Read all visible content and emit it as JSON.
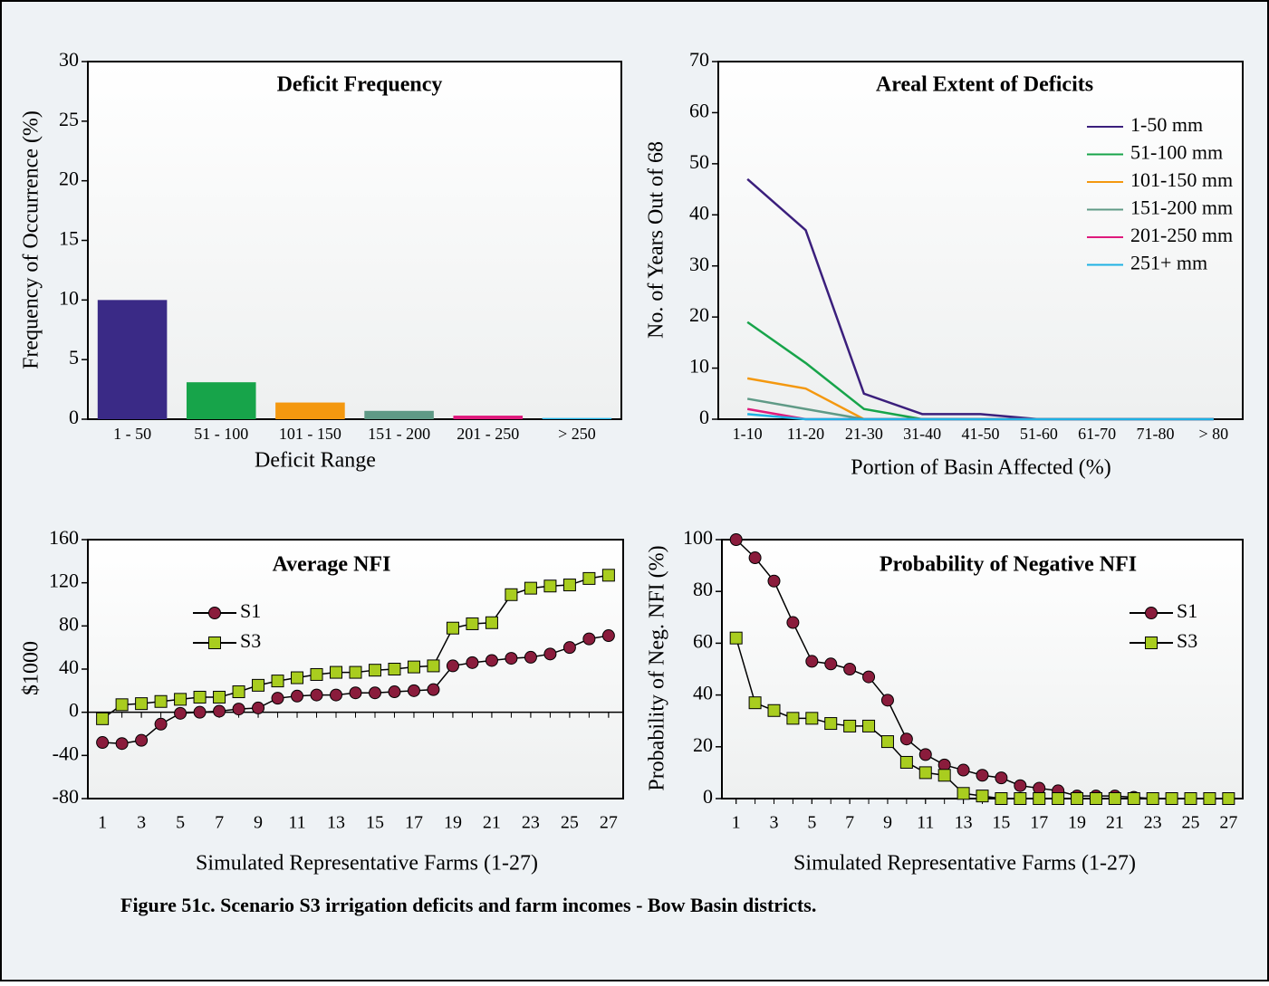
{
  "chart_data": [
    {
      "type": "bar",
      "title": "Deficit Frequency",
      "x_label": "Deficit Range",
      "y_label": "Frequency of Occurrence (%)",
      "categories": [
        "1 - 50",
        "51 - 100",
        "101 - 150",
        "151 - 200",
        "201 - 250",
        "> 250"
      ],
      "values": [
        10,
        3.1,
        1.4,
        0.7,
        0.3,
        0.1
      ],
      "colors": [
        "#3a2a86",
        "#17a44a",
        "#f4980f",
        "#5f9a86",
        "#df1a7c",
        "#1eb1e3"
      ],
      "ylim": [
        0,
        30
      ],
      "yticks": [
        0,
        5,
        10,
        15,
        20,
        25,
        30
      ]
    },
    {
      "type": "line",
      "title": "Areal Extent of Deficits",
      "x_label": "Portion of Basin Affected (%)",
      "y_label": "No. of Years Out of 68",
      "categories": [
        "1-10",
        "11-20",
        "21-30",
        "31-40",
        "41-50",
        "51-60",
        "61-70",
        "71-80",
        "> 80"
      ],
      "series": [
        {
          "name": "1-50 mm",
          "color": "#3b1f7c",
          "values": [
            47,
            37,
            5,
            1,
            1,
            0,
            0,
            0,
            0
          ]
        },
        {
          "name": "51-100 mm",
          "color": "#17a44a",
          "values": [
            19,
            11,
            2,
            0,
            0,
            0,
            0,
            0,
            0
          ]
        },
        {
          "name": "101-150 mm",
          "color": "#f4980f",
          "values": [
            8,
            6,
            0,
            0,
            0,
            0,
            0,
            0,
            0
          ]
        },
        {
          "name": "151-200 mm",
          "color": "#5f9a86",
          "values": [
            4,
            2,
            0,
            0,
            0,
            0,
            0,
            0,
            0
          ]
        },
        {
          "name": "201-250 mm",
          "color": "#df1a7c",
          "values": [
            2,
            0,
            0,
            0,
            0,
            0,
            0,
            0,
            0
          ]
        },
        {
          "name": "251+ mm",
          "color": "#1eb1e3",
          "values": [
            1,
            0,
            0,
            0,
            0,
            0,
            0,
            0,
            0
          ]
        }
      ],
      "ylim": [
        0,
        70
      ],
      "yticks": [
        0,
        10,
        20,
        30,
        40,
        50,
        60,
        70
      ],
      "legend": "upper right"
    },
    {
      "type": "line",
      "title": "Average NFI",
      "x_label": "Simulated Representative Farms (1-27)",
      "y_label": "$1000",
      "x": [
        1,
        2,
        3,
        4,
        5,
        6,
        7,
        8,
        9,
        10,
        11,
        12,
        13,
        14,
        15,
        16,
        17,
        18,
        19,
        20,
        21,
        22,
        23,
        24,
        25,
        26,
        27
      ],
      "series": [
        {
          "name": "S1",
          "color": "#8a1c3c",
          "marker": "circle",
          "values": [
            -28,
            -29,
            -26,
            -11,
            -1,
            0,
            1,
            3,
            4,
            13,
            15,
            16,
            16,
            18,
            18,
            19,
            20,
            21,
            43,
            46,
            48,
            50,
            51,
            54,
            60,
            68,
            71
          ]
        },
        {
          "name": "S3",
          "color": "#a9cd1f",
          "marker": "square",
          "values": [
            -6,
            7,
            8,
            10,
            12,
            14,
            14,
            19,
            25,
            29,
            32,
            35,
            37,
            37,
            39,
            40,
            42,
            43,
            78,
            82,
            83,
            109,
            115,
            117,
            118,
            124,
            127
          ]
        }
      ],
      "xlim": [
        0.25,
        27.75
      ],
      "xticks": [
        1,
        3,
        5,
        7,
        9,
        11,
        13,
        15,
        17,
        19,
        21,
        23,
        25,
        27
      ],
      "ylim": [
        -80,
        160
      ],
      "yticks": [
        -80,
        -40,
        0,
        40,
        80,
        120,
        160
      ],
      "legend": "center left"
    },
    {
      "type": "line",
      "title": "Probability of Negative NFI",
      "x_label": "Simulated Representative Farms (1-27)",
      "y_label": "Probability of Neg. NFI (%)",
      "x": [
        1,
        2,
        3,
        4,
        5,
        6,
        7,
        8,
        9,
        10,
        11,
        12,
        13,
        14,
        15,
        16,
        17,
        18,
        19,
        20,
        21,
        22,
        23,
        24,
        25,
        26,
        27
      ],
      "series": [
        {
          "name": "S1",
          "color": "#8a1c3c",
          "marker": "circle",
          "values": [
            100,
            93,
            84,
            68,
            53,
            52,
            50,
            47,
            38,
            23,
            17,
            13,
            11,
            9,
            8,
            5,
            4,
            3,
            1,
            1,
            1,
            0.5,
            0,
            0,
            0,
            0,
            0
          ]
        },
        {
          "name": "S3",
          "color": "#a9cd1f",
          "marker": "square",
          "values": [
            62,
            37,
            34,
            31,
            31,
            29,
            28,
            28,
            22,
            14,
            10,
            9,
            2,
            1,
            0,
            0,
            0,
            0,
            0,
            0,
            0,
            0,
            0,
            0,
            0,
            0,
            0
          ]
        }
      ],
      "xlim": [
        0.25,
        27.75
      ],
      "xticks": [
        1,
        3,
        5,
        7,
        9,
        11,
        13,
        15,
        17,
        19,
        21,
        23,
        25,
        27
      ],
      "ylim": [
        0,
        100
      ],
      "yticks": [
        0,
        20,
        40,
        60,
        80,
        100
      ],
      "legend": "upper right"
    }
  ],
  "caption": "Figure 51c. Scenario S3 irrigation deficits and farm incomes - Bow Basin districts."
}
